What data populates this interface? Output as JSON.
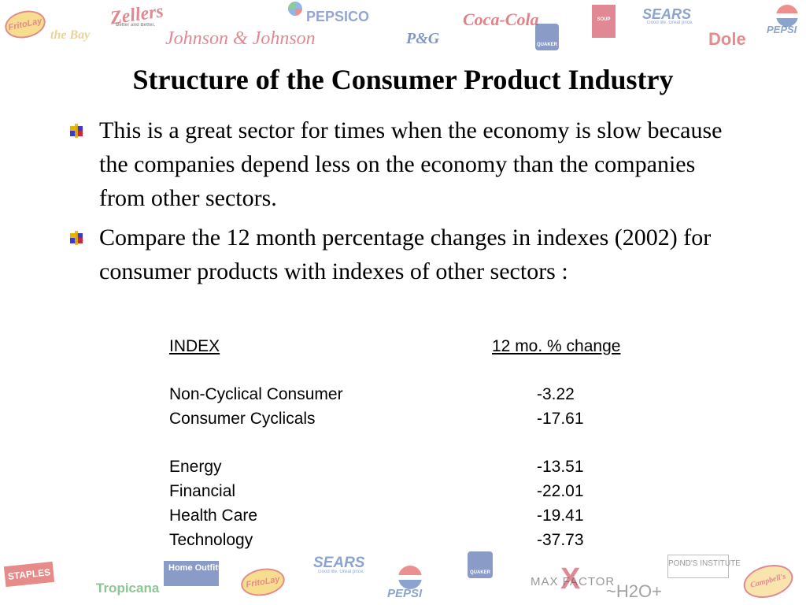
{
  "logos": {
    "top": {
      "fritolay": "FritoLay",
      "thebay": "the Bay",
      "zellers": "Zellers",
      "zellers_tagline": "Better and Better.",
      "johnson": "Johnson & Johnson",
      "pepsico": "PEPSICO",
      "pg": "P&G",
      "cocacola": "Coca-Cola",
      "quaker": "QUAKER",
      "campbell": "SOUP",
      "sears": "SEARS",
      "sears_tagline": "Good life. Great price.",
      "dole": "Dole",
      "pepsi": "PEPSI"
    },
    "bottom": {
      "staples": "STAPLES",
      "tropicana": "Tropicana",
      "home_outfitters": "Home Outfitters",
      "fritolay": "FritoLay",
      "sears": "SEARS",
      "sears_tagline": "Good life. Great price.",
      "pepsi": "PEPSI",
      "quaker": "QUAKER",
      "maxfactor": "MAX FACTOR",
      "h2o": "~H2O+",
      "ponds": "POND'S INSTITUTE",
      "campbells": "Campbell's"
    }
  },
  "slide": {
    "title": "Structure of the Consumer Product Industry",
    "bullets": [
      "This is a great sector for times when the economy is slow because the companies depend less on the economy than the companies from other sectors.",
      "Compare the 12 month percentage changes in indexes (2002) for consumer products with indexes of other sectors :"
    ],
    "table": {
      "header_index": "INDEX",
      "header_change": "12 mo. % change",
      "rows": [
        {
          "name": "Non-Cyclical Consumer",
          "value": "-3.22"
        },
        {
          "name": "Consumer Cyclicals",
          "value": "-17.61"
        },
        {
          "name": "Energy",
          "value": "-13.51"
        },
        {
          "name": "Financial",
          "value": "-22.01"
        },
        {
          "name": "Health Care",
          "value": "-19.41"
        },
        {
          "name": "Technology",
          "value": "-37.73"
        }
      ]
    }
  },
  "colors": {
    "bullet_primary": "#e8b400",
    "bullet_secondary": "#3a3ad0",
    "bullet_accent": "#c8283c"
  }
}
